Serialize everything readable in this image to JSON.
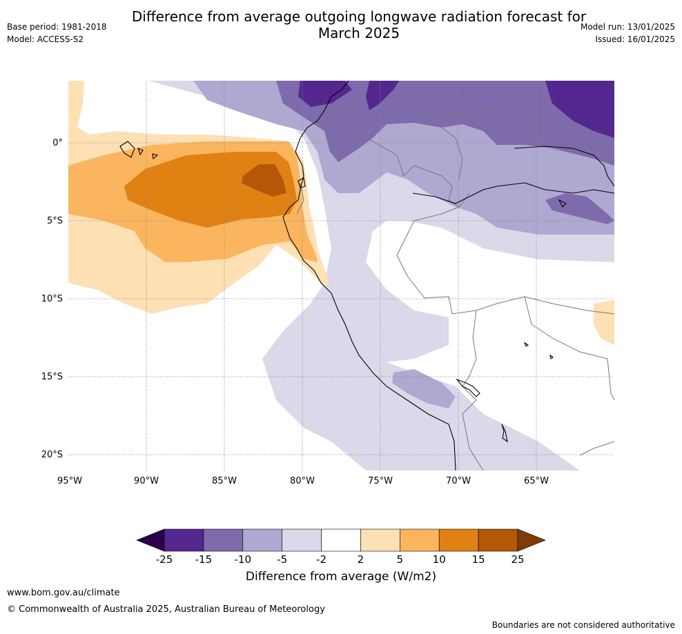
{
  "title_line1": "Difference from average outgoing longwave radiation forecast for",
  "title_line2": "March 2025",
  "meta_left": {
    "base_period": "Base period: 1981-2018",
    "model": "Model: ACCESS-S2"
  },
  "meta_right": {
    "model_run": "Model run: 13/01/2025",
    "issued": "Issued: 16/01/2025"
  },
  "map": {
    "lon_ticks": [
      "95°W",
      "90°W",
      "85°W",
      "80°W",
      "75°W",
      "70°W",
      "65°W"
    ],
    "lat_ticks": [
      "0°",
      "5°S",
      "10°S",
      "15°S",
      "20°S"
    ],
    "lon_values": [
      -95,
      -90,
      -85,
      -80,
      -75,
      -70,
      -65
    ],
    "lat_values": [
      0,
      -5,
      -10,
      -15,
      -20
    ],
    "extent": {
      "lon_min": -95,
      "lon_max": -60,
      "lat_min": -21,
      "lat_max": 4
    }
  },
  "colorbar": {
    "title": "Difference from average (W/m2)",
    "ticks": [
      "-25",
      "-15",
      "-10",
      "-5",
      "-2",
      "2",
      "5",
      "10",
      "15",
      "25"
    ],
    "colors": [
      "#54278f",
      "#7d6bab",
      "#afa8d0",
      "#d9d9ea",
      "#ffffff",
      "#fde0b4",
      "#fbb55f",
      "#e08114",
      "#b35806"
    ],
    "under_color": "#2d0049",
    "over_color": "#7f3b08"
  },
  "colors": {
    "purple_dark": "#54278f",
    "purple_mid": "#7d6bab",
    "purple_light": "#afa8d0",
    "purple_pale": "#d9d9ea",
    "orange_pale": "#fde0b4",
    "orange_light": "#fbb55f",
    "orange_mid": "#e08114",
    "orange_dark": "#b35806"
  },
  "footer": {
    "url": "www.bom.gov.au/climate",
    "copyright": "© Commonwealth of Australia 2025, Australian Bureau of Meteorology",
    "note": "Boundaries are not considered authoritative"
  }
}
